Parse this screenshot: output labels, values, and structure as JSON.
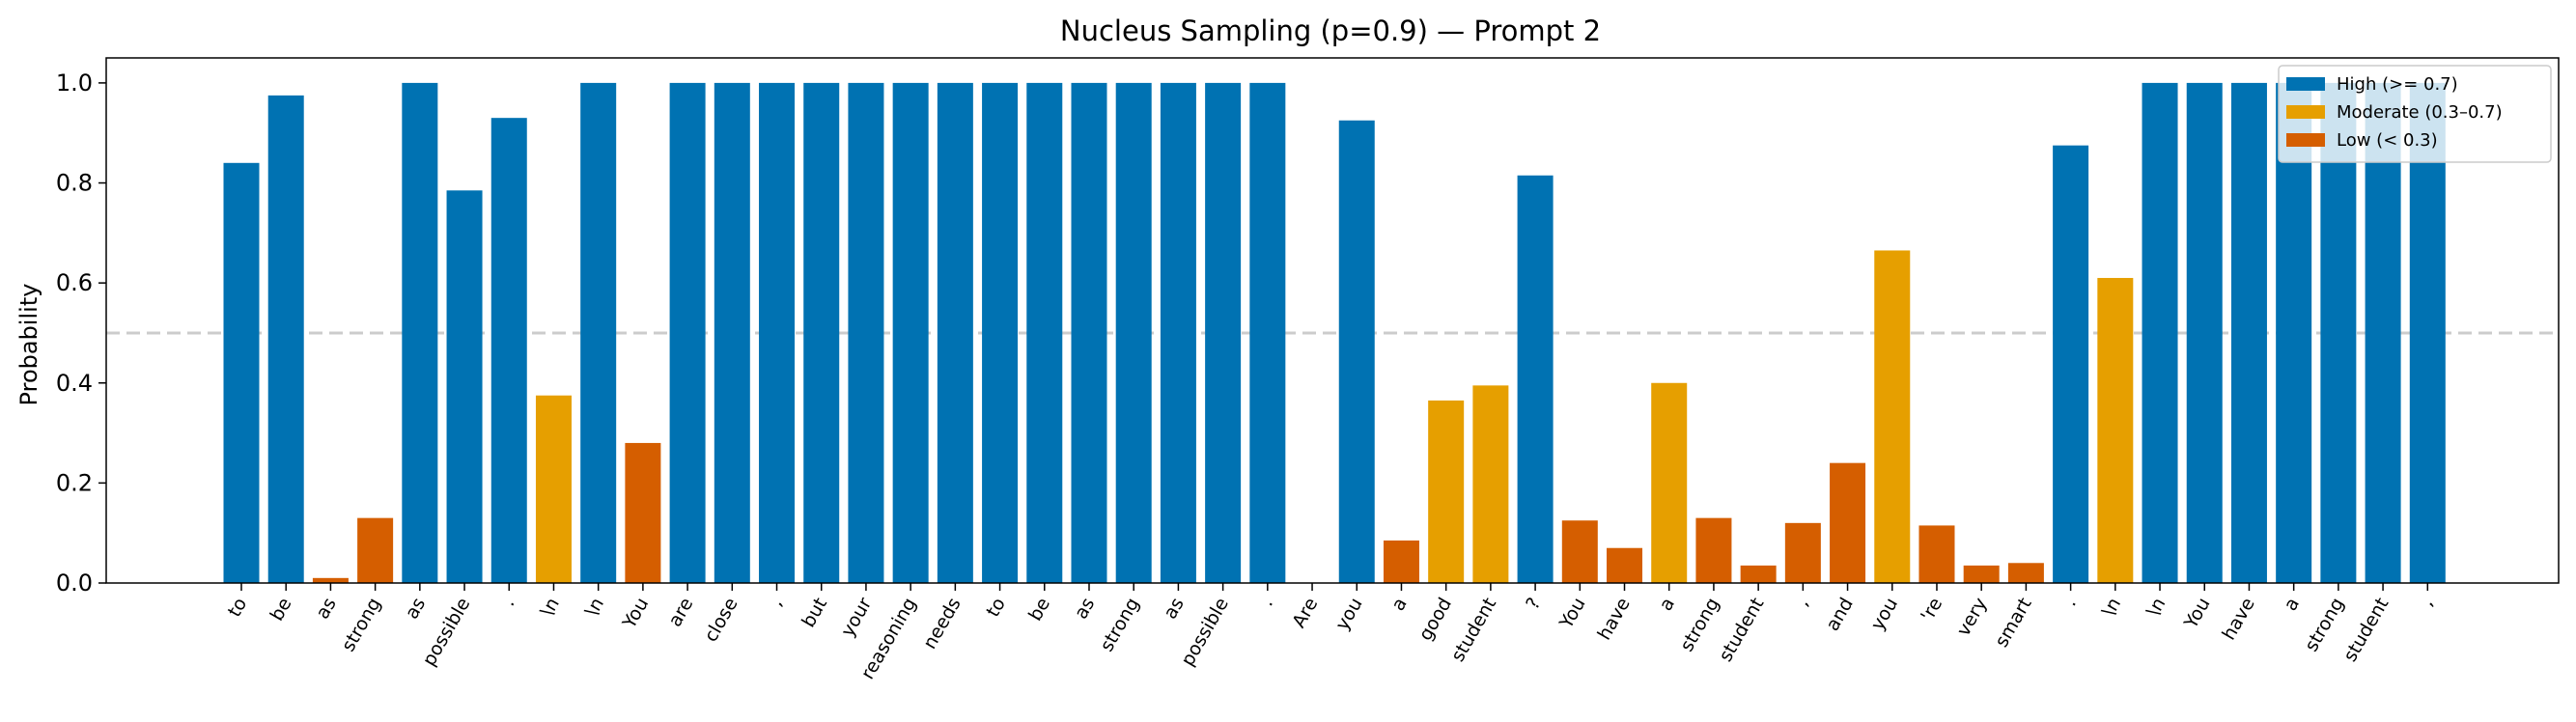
{
  "chart_data": {
    "type": "bar",
    "title": "Nucleus Sampling (p=0.9) — Prompt 2",
    "xlabel": "",
    "ylabel": "Probability",
    "ylim": [
      0,
      1.05
    ],
    "yticks": [
      0.0,
      0.2,
      0.4,
      0.6,
      0.8,
      1.0
    ],
    "ytick_labels": [
      "0.0",
      "0.2",
      "0.4",
      "0.6",
      "0.8",
      "1.0"
    ],
    "reference_line": {
      "y": 0.5,
      "style": "dashed",
      "color": "#cccccc"
    },
    "grid": false,
    "legend_position": "top-right",
    "colors": {
      "high": "#0072B2",
      "moderate": "#E69F00",
      "low": "#D55E00"
    },
    "legend": [
      {
        "label": "High (>= 0.7)",
        "color_key": "high"
      },
      {
        "label": "Moderate (0.3–0.7)",
        "color_key": "moderate"
      },
      {
        "label": "Low (< 0.3)",
        "color_key": "low"
      }
    ],
    "categories": [
      "to",
      "be",
      "as",
      "strong",
      "as",
      "possible",
      ".",
      "\\n",
      "\\n",
      "You",
      "are",
      "close",
      ",",
      "but",
      "your",
      "reasoning",
      "needs",
      "to",
      "be",
      "as",
      "strong",
      "as",
      "possible",
      ".",
      "Are",
      "you",
      "a",
      "good",
      "student",
      "?",
      "You",
      "have",
      "a",
      "strong",
      "student",
      ",",
      "and",
      "you",
      "'re",
      "very",
      "smart",
      ".",
      "\\n",
      "\\n",
      "You",
      "have",
      "a",
      "strong",
      "student",
      ","
    ],
    "values": [
      0.84,
      0.975,
      0.01,
      0.13,
      1.0,
      0.785,
      0.93,
      0.375,
      1.0,
      0.28,
      1.0,
      1.0,
      1.0,
      1.0,
      1.0,
      1.0,
      1.0,
      1.0,
      1.0,
      1.0,
      1.0,
      1.0,
      1.0,
      1.0,
      0.0,
      0.925,
      0.085,
      0.365,
      0.395,
      0.815,
      0.125,
      0.07,
      0.4,
      0.13,
      0.035,
      0.12,
      0.24,
      0.665,
      0.115,
      0.035,
      0.04,
      0.875,
      0.61,
      1.0,
      1.0,
      1.0,
      1.0,
      1.0,
      1.0,
      1.0
    ]
  }
}
